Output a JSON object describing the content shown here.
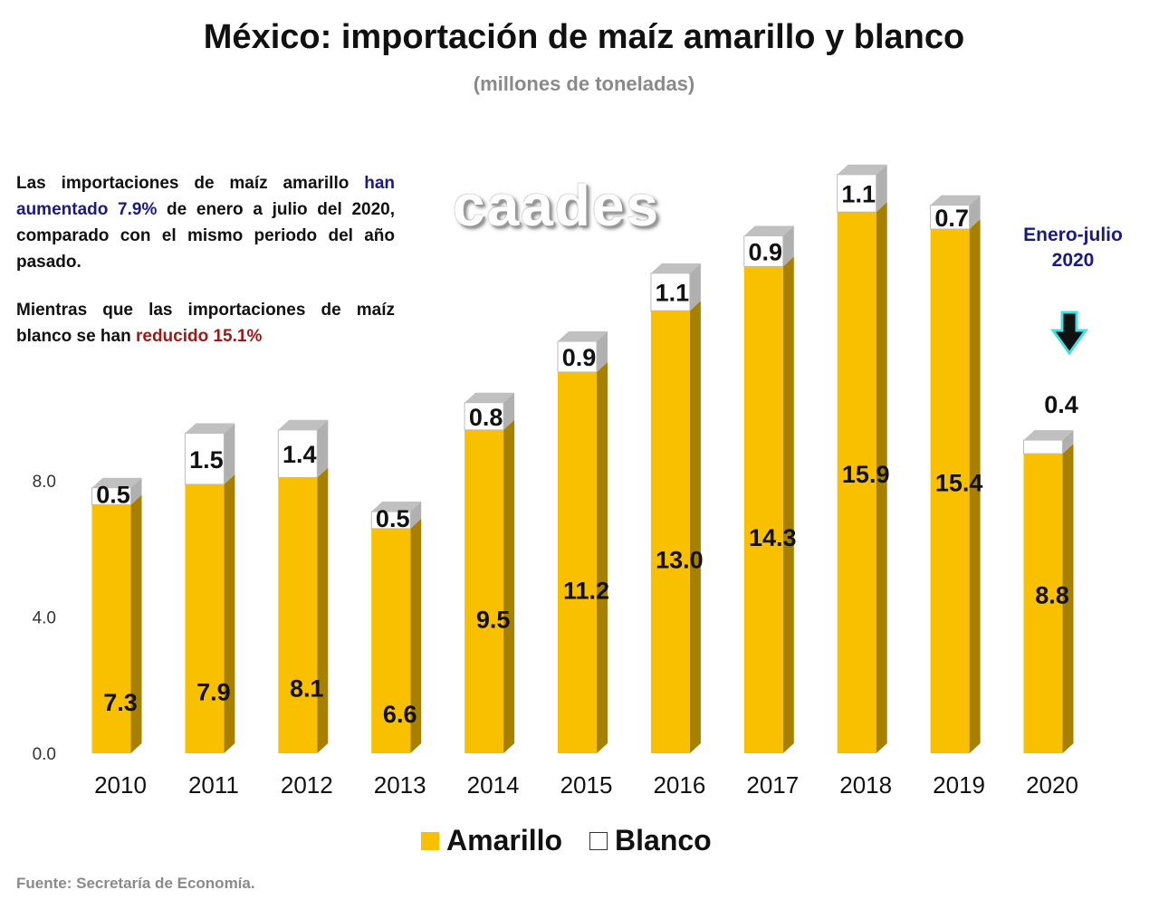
{
  "title": "México: importación de maíz amarillo y blanco",
  "subtitle": "(millones de toneladas)",
  "note": {
    "p1_a": "Las importaciones de maíz amarillo",
    "p1_b": "han aumentado 7.9%",
    "p1_c": "de enero a julio del 2020, comparado con el mismo periodo del año pasado.",
    "p2_a": "Mientras que las importaciones de maíz blanco se han",
    "p2_b": "reducido 15.1%"
  },
  "logo": "caades",
  "period_label": "Enero-julio 2020",
  "source": "Fuente: Secretaría de Economía.",
  "colors": {
    "amarillo": "#f9c000",
    "amarillo_side": "#a88000",
    "blanco": "#ffffff",
    "top": "#c0c0c0",
    "period_blue": "#1a1a80",
    "highlight_red": "#a01818",
    "arrow_glow": "#40e0e0"
  },
  "chart_data": {
    "type": "bar",
    "stacked": true,
    "categories": [
      "2010",
      "2011",
      "2012",
      "2013",
      "2014",
      "2015",
      "2016",
      "2017",
      "2018",
      "2019",
      "2020"
    ],
    "series": [
      {
        "name": "Amarillo",
        "values": [
          7.3,
          7.9,
          8.1,
          6.6,
          9.5,
          11.2,
          13.0,
          14.3,
          15.9,
          15.4,
          8.8
        ]
      },
      {
        "name": "Blanco",
        "values": [
          0.5,
          1.5,
          1.4,
          0.5,
          0.8,
          0.9,
          1.1,
          0.9,
          1.1,
          0.7,
          0.4
        ]
      }
    ],
    "yticks": [
      "0.0",
      "4.0",
      "8.0"
    ],
    "ylim": [
      0,
      16
    ],
    "grid": false,
    "legend": "bottom",
    "style": "3d"
  }
}
